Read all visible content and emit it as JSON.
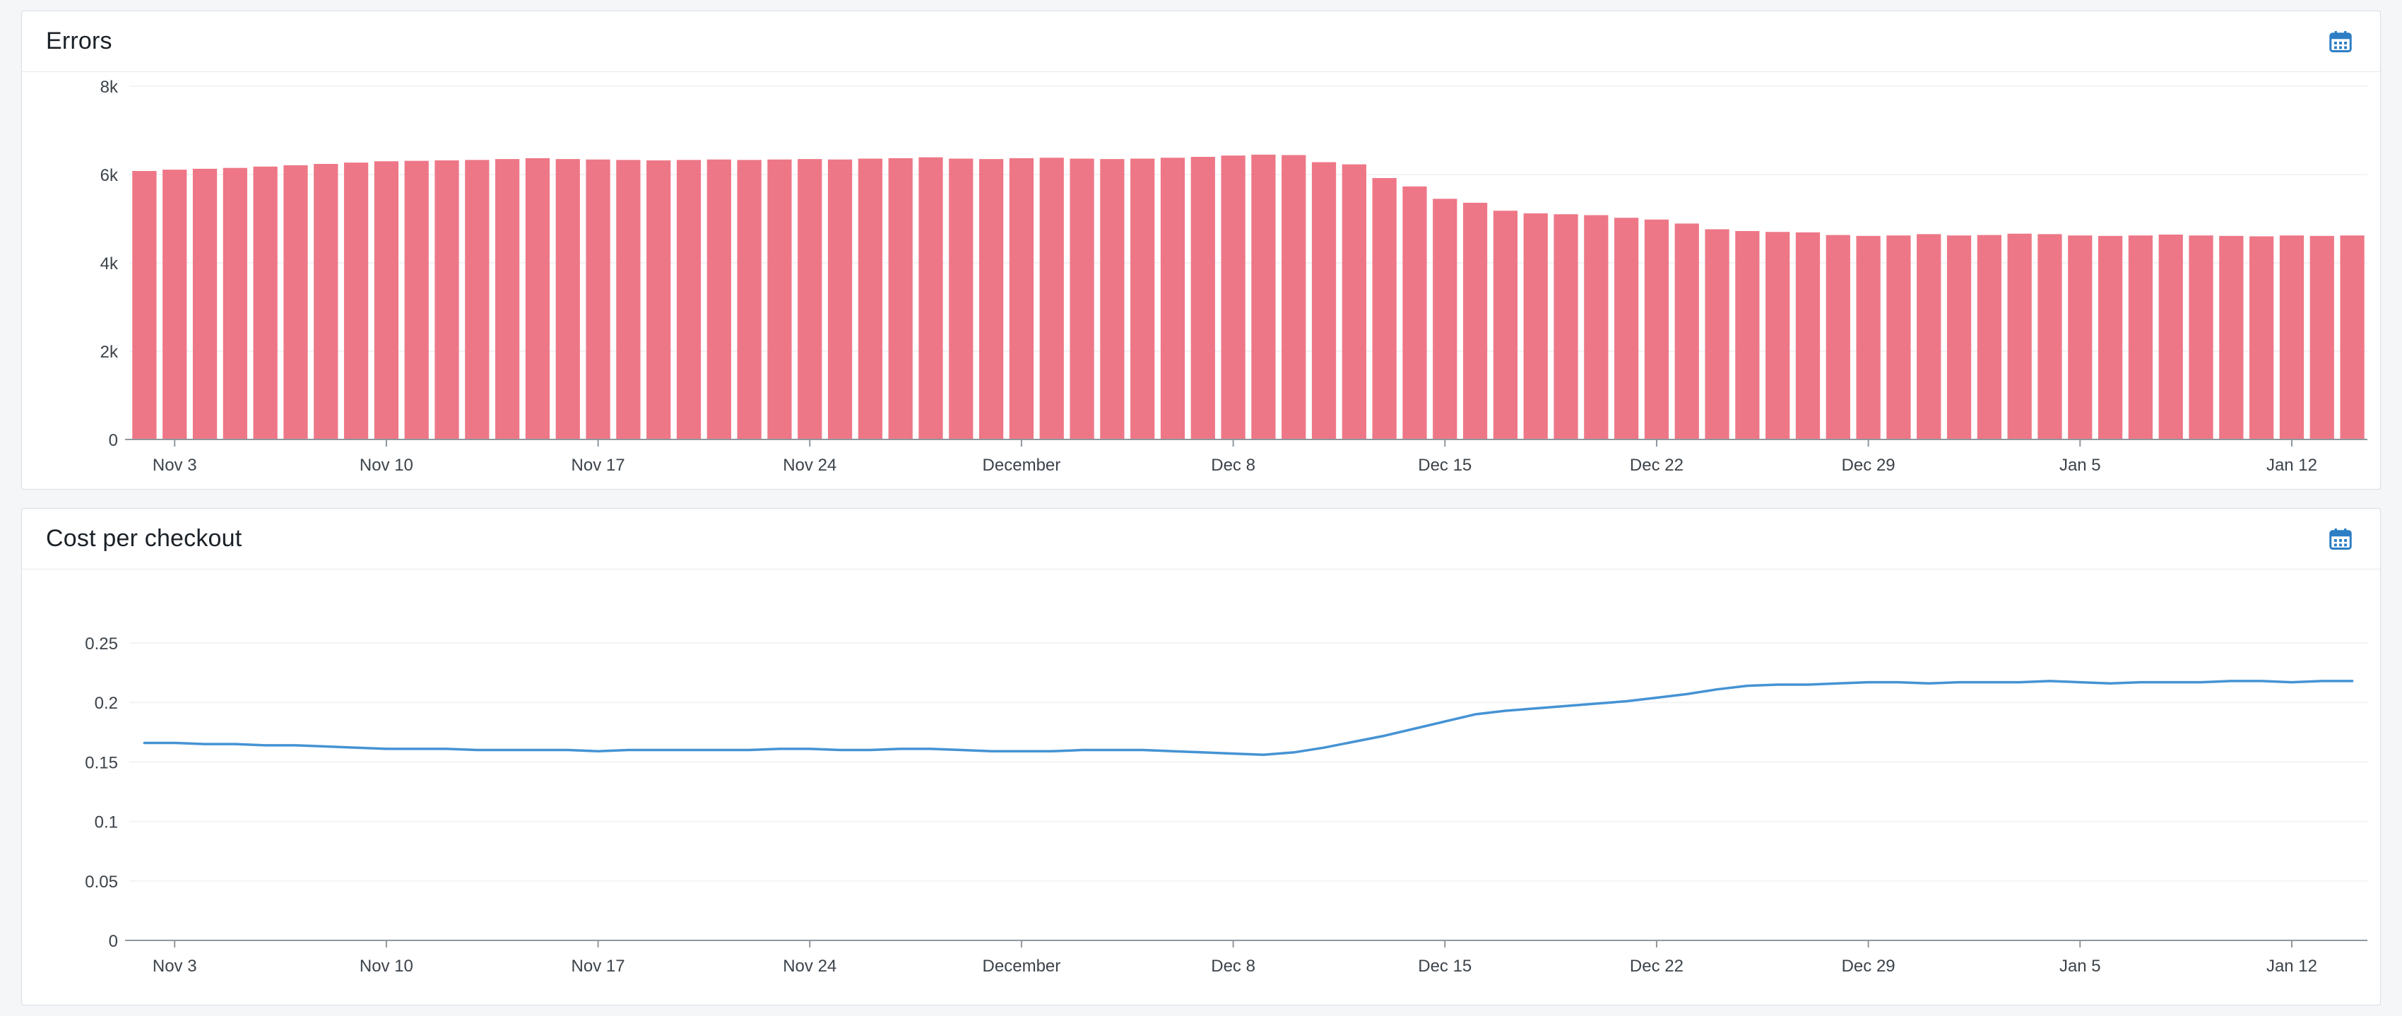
{
  "page": {
    "background": "#f4f6f8",
    "accent_blue": "#2d7ec4"
  },
  "panels": [
    {
      "title": "Errors",
      "header_icon": "calendar-icon"
    },
    {
      "title": "Cost per checkout",
      "header_icon": "calendar-icon"
    }
  ],
  "chart_data": [
    {
      "type": "bar",
      "title": "Errors",
      "color": "#ee7787",
      "ylim": [
        0,
        8000
      ],
      "yticks": [
        0,
        2000,
        4000,
        6000,
        8000
      ],
      "ytick_labels": [
        "0",
        "2k",
        "4k",
        "6k",
        "8k"
      ],
      "grid": false,
      "legend": "none",
      "categories": [
        "Nov 2",
        "Nov 3",
        "Nov 4",
        "Nov 5",
        "Nov 6",
        "Nov 7",
        "Nov 8",
        "Nov 9",
        "Nov 10",
        "Nov 11",
        "Nov 12",
        "Nov 13",
        "Nov 14",
        "Nov 15",
        "Nov 16",
        "Nov 17",
        "Nov 18",
        "Nov 19",
        "Nov 20",
        "Nov 21",
        "Nov 22",
        "Nov 23",
        "Nov 24",
        "Nov 25",
        "Nov 26",
        "Nov 27",
        "Nov 28",
        "Nov 29",
        "Nov 30",
        "Dec 1",
        "Dec 2",
        "Dec 3",
        "Dec 4",
        "Dec 5",
        "Dec 6",
        "Dec 7",
        "Dec 8",
        "Dec 9",
        "Dec 10",
        "Dec 11",
        "Dec 12",
        "Dec 13",
        "Dec 14",
        "Dec 15",
        "Dec 16",
        "Dec 17",
        "Dec 18",
        "Dec 19",
        "Dec 20",
        "Dec 21",
        "Dec 22",
        "Dec 23",
        "Dec 24",
        "Dec 25",
        "Dec 26",
        "Dec 27",
        "Dec 28",
        "Dec 29",
        "Dec 30",
        "Dec 31",
        "Jan 1",
        "Jan 2",
        "Jan 3",
        "Jan 4",
        "Jan 5",
        "Jan 6",
        "Jan 7",
        "Jan 8",
        "Jan 9",
        "Jan 10",
        "Jan 11",
        "Jan 12",
        "Jan 13",
        "Jan 14"
      ],
      "values": [
        6080,
        6110,
        6130,
        6150,
        6180,
        6210,
        6240,
        6270,
        6300,
        6310,
        6320,
        6330,
        6350,
        6370,
        6350,
        6340,
        6330,
        6320,
        6330,
        6340,
        6330,
        6340,
        6350,
        6340,
        6360,
        6370,
        6390,
        6360,
        6350,
        6370,
        6380,
        6360,
        6350,
        6360,
        6380,
        6400,
        6430,
        6450,
        6440,
        6280,
        6230,
        5920,
        5730,
        5450,
        5360,
        5180,
        5120,
        5100,
        5080,
        5020,
        4980,
        4890,
        4760,
        4720,
        4700,
        4690,
        4630,
        4610,
        4620,
        4650,
        4620,
        4630,
        4660,
        4650,
        4620,
        4610,
        4620,
        4640,
        4620,
        4610,
        4600,
        4620,
        4610,
        4620
      ],
      "xticks": [
        {
          "index": 1,
          "label": "Nov 3"
        },
        {
          "index": 8,
          "label": "Nov 10"
        },
        {
          "index": 15,
          "label": "Nov 17"
        },
        {
          "index": 22,
          "label": "Nov 24"
        },
        {
          "index": 29,
          "label": "December"
        },
        {
          "index": 36,
          "label": "Dec 8"
        },
        {
          "index": 43,
          "label": "Dec 15"
        },
        {
          "index": 50,
          "label": "Dec 22"
        },
        {
          "index": 57,
          "label": "Dec 29"
        },
        {
          "index": 64,
          "label": "Jan 5"
        },
        {
          "index": 71,
          "label": "Jan 12"
        }
      ]
    },
    {
      "type": "line",
      "title": "Cost per checkout",
      "color": "#4593d4",
      "ylim": [
        0,
        0.25
      ],
      "yticks": [
        0,
        0.05,
        0.1,
        0.15,
        0.2,
        0.25
      ],
      "ytick_labels": [
        "0",
        "0.05",
        "0.1",
        "0.15",
        "0.2",
        "0.25"
      ],
      "grid": false,
      "legend": "none",
      "categories": [
        "Nov 2",
        "Nov 3",
        "Nov 4",
        "Nov 5",
        "Nov 6",
        "Nov 7",
        "Nov 8",
        "Nov 9",
        "Nov 10",
        "Nov 11",
        "Nov 12",
        "Nov 13",
        "Nov 14",
        "Nov 15",
        "Nov 16",
        "Nov 17",
        "Nov 18",
        "Nov 19",
        "Nov 20",
        "Nov 21",
        "Nov 22",
        "Nov 23",
        "Nov 24",
        "Nov 25",
        "Nov 26",
        "Nov 27",
        "Nov 28",
        "Nov 29",
        "Nov 30",
        "Dec 1",
        "Dec 2",
        "Dec 3",
        "Dec 4",
        "Dec 5",
        "Dec 6",
        "Dec 7",
        "Dec 8",
        "Dec 9",
        "Dec 10",
        "Dec 11",
        "Dec 12",
        "Dec 13",
        "Dec 14",
        "Dec 15",
        "Dec 16",
        "Dec 17",
        "Dec 18",
        "Dec 19",
        "Dec 20",
        "Dec 21",
        "Dec 22",
        "Dec 23",
        "Dec 24",
        "Dec 25",
        "Dec 26",
        "Dec 27",
        "Dec 28",
        "Dec 29",
        "Dec 30",
        "Dec 31",
        "Jan 1",
        "Jan 2",
        "Jan 3",
        "Jan 4",
        "Jan 5",
        "Jan 6",
        "Jan 7",
        "Jan 8",
        "Jan 9",
        "Jan 10",
        "Jan 11",
        "Jan 12",
        "Jan 13",
        "Jan 14"
      ],
      "values": [
        0.166,
        0.166,
        0.165,
        0.165,
        0.164,
        0.164,
        0.163,
        0.162,
        0.161,
        0.161,
        0.161,
        0.16,
        0.16,
        0.16,
        0.16,
        0.159,
        0.16,
        0.16,
        0.16,
        0.16,
        0.16,
        0.161,
        0.161,
        0.16,
        0.16,
        0.161,
        0.161,
        0.16,
        0.159,
        0.159,
        0.159,
        0.16,
        0.16,
        0.16,
        0.159,
        0.158,
        0.157,
        0.156,
        0.158,
        0.162,
        0.167,
        0.172,
        0.178,
        0.184,
        0.19,
        0.193,
        0.195,
        0.197,
        0.199,
        0.201,
        0.204,
        0.207,
        0.211,
        0.214,
        0.215,
        0.215,
        0.216,
        0.217,
        0.217,
        0.216,
        0.217,
        0.217,
        0.217,
        0.218,
        0.217,
        0.216,
        0.217,
        0.217,
        0.217,
        0.218,
        0.218,
        0.217,
        0.218,
        0.218
      ],
      "xticks": [
        {
          "index": 1,
          "label": "Nov 3"
        },
        {
          "index": 8,
          "label": "Nov 10"
        },
        {
          "index": 15,
          "label": "Nov 17"
        },
        {
          "index": 22,
          "label": "Nov 24"
        },
        {
          "index": 29,
          "label": "December"
        },
        {
          "index": 36,
          "label": "Dec 8"
        },
        {
          "index": 43,
          "label": "Dec 15"
        },
        {
          "index": 50,
          "label": "Dec 22"
        },
        {
          "index": 57,
          "label": "Dec 29"
        },
        {
          "index": 64,
          "label": "Jan 5"
        },
        {
          "index": 71,
          "label": "Jan 12"
        }
      ]
    }
  ]
}
